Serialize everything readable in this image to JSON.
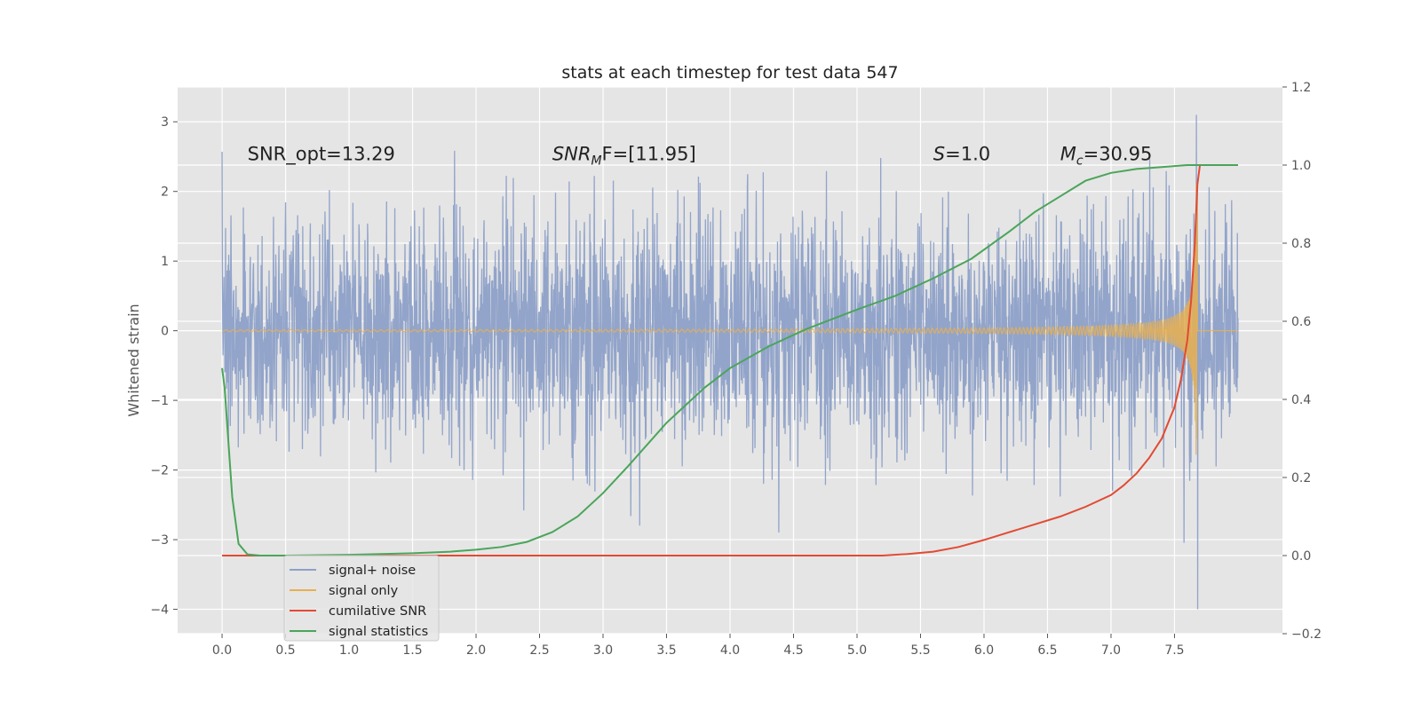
{
  "chart_data": {
    "type": "line",
    "title": "stats at each timestep for test data 547",
    "ylabel": "Whitened strain",
    "xlim": [
      -0.35,
      8.35
    ],
    "ylim": [
      -4.35,
      3.5
    ],
    "y2lim": [
      -0.2,
      1.2
    ],
    "x_ticks": [
      0.0,
      0.5,
      1.0,
      1.5,
      2.0,
      2.5,
      3.0,
      3.5,
      4.0,
      4.5,
      5.0,
      5.5,
      6.0,
      6.5,
      7.0,
      7.5
    ],
    "x_tick_labels": [
      "0.0",
      "0.5",
      "1.0",
      "1.5",
      "2.0",
      "2.5",
      "3.0",
      "3.5",
      "4.0",
      "4.5",
      "5.0",
      "5.5",
      "6.0",
      "6.5",
      "7.0",
      "7.5"
    ],
    "y_ticks": [
      -4,
      -3,
      -2,
      -1,
      0,
      1,
      2,
      3
    ],
    "y_tick_labels": [
      "−4",
      "−3",
      "−2",
      "−1",
      "0",
      "1",
      "2",
      "3"
    ],
    "y2_ticks": [
      -0.2,
      0.0,
      0.2,
      0.4,
      0.6,
      0.8,
      1.0,
      1.2
    ],
    "y2_tick_labels": [
      "−0.2",
      "0.0",
      "0.2",
      "0.4",
      "0.6",
      "0.8",
      "1.0",
      "1.2"
    ],
    "grid": true,
    "legend_position": "lower-left",
    "annotations": [
      {
        "text": "SNR_opt=13.29",
        "x": 0.2,
        "y": 2.45
      },
      {
        "text_main": "SNR",
        "text_sub": "M",
        "text_rest": "F=[11.95]",
        "x": 2.6,
        "y": 2.45
      },
      {
        "text_main": "S",
        "text_rest": "=1.0",
        "x": 5.6,
        "y": 2.45
      },
      {
        "text_main": "M",
        "text_sub": "c",
        "text_rest": "=30.95",
        "x": 6.6,
        "y": 2.45
      }
    ],
    "series": [
      {
        "name": "signal+ noise",
        "axis": "left",
        "color": "#8da0c8",
        "description_range": [
          -2.5,
          2.5
        ],
        "x_range": [
          0.0,
          8.0
        ]
      },
      {
        "name": "signal only",
        "axis": "left",
        "color": "#e8b050",
        "x_range": [
          0.0,
          8.0
        ],
        "chirp_merger_time": 7.68,
        "peak_amplitude": 2.3
      },
      {
        "name": "cumilative SNR",
        "axis": "right",
        "color": "#e24a33",
        "x": [
          0.0,
          5.2,
          5.4,
          5.6,
          5.8,
          6.0,
          6.2,
          6.4,
          6.6,
          6.8,
          7.0,
          7.1,
          7.2,
          7.3,
          7.4,
          7.5,
          7.55,
          7.6,
          7.63,
          7.66,
          7.68,
          7.7,
          8.0
        ],
        "y": [
          0.0,
          0.0,
          0.004,
          0.01,
          0.022,
          0.04,
          0.06,
          0.08,
          0.1,
          0.125,
          0.155,
          0.18,
          0.21,
          0.25,
          0.3,
          0.38,
          0.45,
          0.55,
          0.65,
          0.8,
          0.95,
          1.0,
          1.0
        ]
      },
      {
        "name": "signal statistics",
        "axis": "right",
        "color": "#4aa55a",
        "x": [
          0.0,
          0.02,
          0.08,
          0.13,
          0.2,
          0.3,
          0.5,
          1.0,
          1.5,
          1.8,
          2.0,
          2.2,
          2.4,
          2.6,
          2.8,
          3.0,
          3.2,
          3.5,
          3.8,
          4.0,
          4.3,
          4.6,
          5.0,
          5.3,
          5.6,
          5.9,
          6.2,
          6.4,
          6.6,
          6.8,
          7.0,
          7.2,
          7.4,
          7.6,
          8.0
        ],
        "y": [
          0.48,
          0.43,
          0.15,
          0.03,
          0.003,
          0.0,
          0.0,
          0.002,
          0.006,
          0.01,
          0.015,
          0.022,
          0.035,
          0.06,
          0.1,
          0.16,
          0.23,
          0.34,
          0.43,
          0.48,
          0.535,
          0.58,
          0.63,
          0.665,
          0.71,
          0.76,
          0.83,
          0.88,
          0.92,
          0.96,
          0.98,
          0.99,
          0.995,
          1.0,
          1.0
        ]
      }
    ]
  }
}
